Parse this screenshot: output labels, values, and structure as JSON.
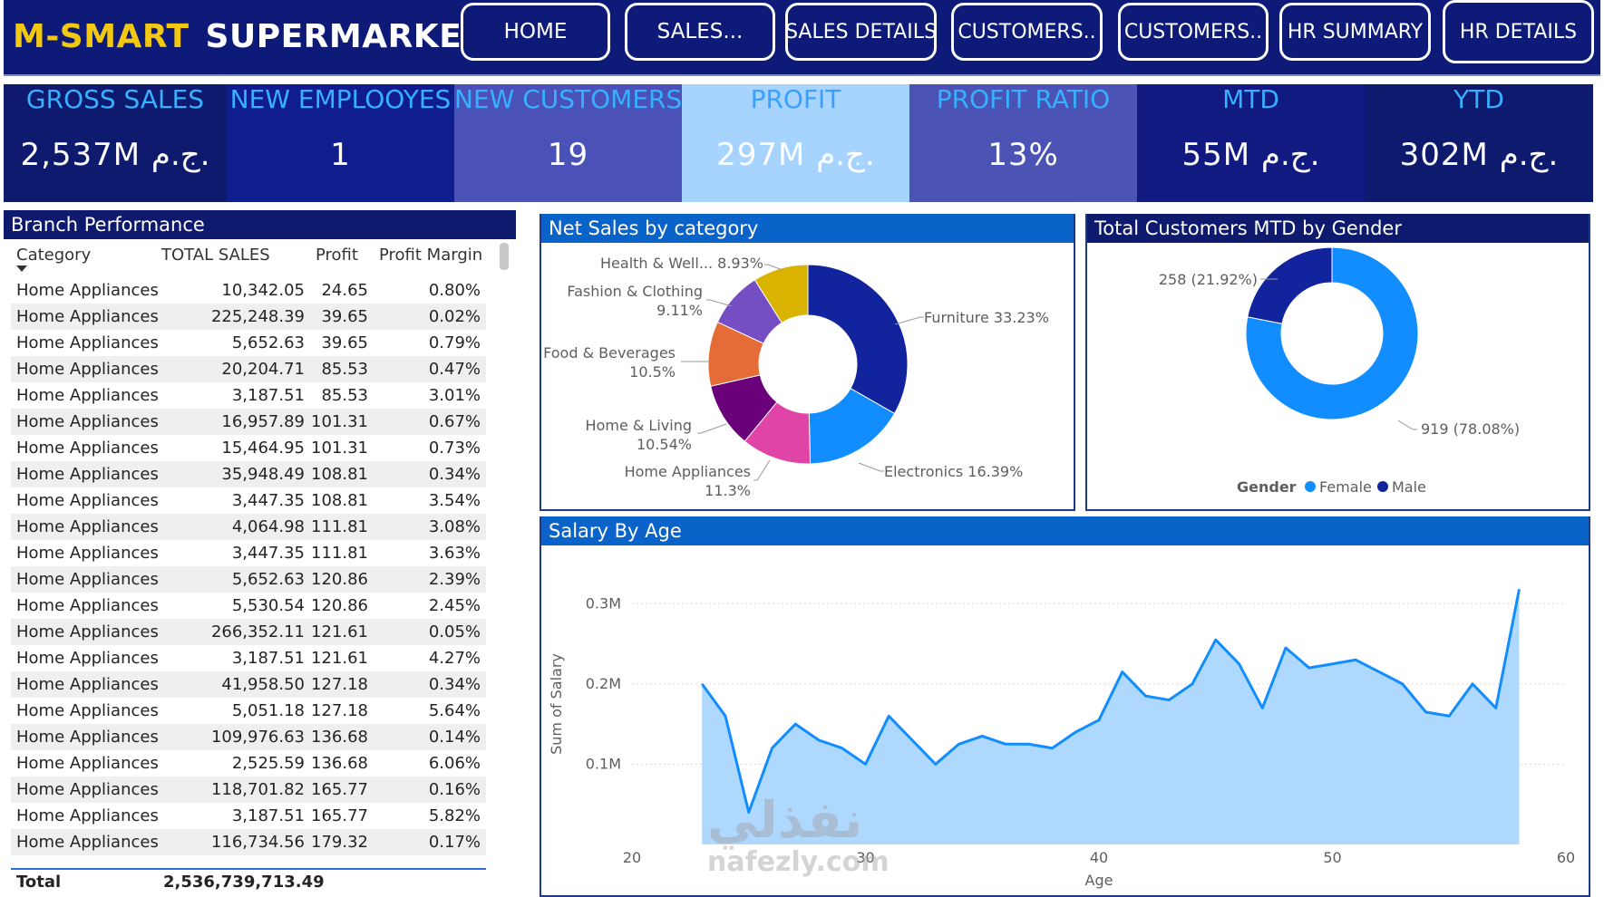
{
  "header": {
    "logo_part1": "M-SMART",
    "logo_part2": "SUPERMARKET",
    "nav": [
      "HOME",
      "SALES...",
      "SALES DETAILS",
      "CUSTOMERS..",
      "CUSTOMERS..",
      "HR SUMMARY",
      "HR DETAILS"
    ]
  },
  "kpis": [
    {
      "label": "GROSS SALES",
      "value": "2,537M ج.م.",
      "label_color": "#36b0ff",
      "bg": "#0e1a6e"
    },
    {
      "label": "NEW EMPLOOYES",
      "value": "1",
      "label_color": "#36b0ff",
      "bg": "#0f1e8c"
    },
    {
      "label": "NEW CUSTOMERS",
      "value": "19",
      "label_color": "#36b0ff",
      "bg": "#4a52b8"
    },
    {
      "label": "PROFIT",
      "value": "297M ج.م.",
      "label_color": "#3aa0ff",
      "bg": "#a6d4ff"
    },
    {
      "label": "PROFIT RATIO",
      "value": "13%",
      "label_color": "#36b0ff",
      "bg": "#4b54b5"
    },
    {
      "label": "MTD",
      "value": "55M ج.م.",
      "label_color": "#36b0ff",
      "bg": "#101a80"
    },
    {
      "label": "YTD",
      "value": "302M ج.م.",
      "label_color": "#36b0ff",
      "bg": "#0e1a6e"
    }
  ],
  "branch": {
    "title": "Branch Performance",
    "columns": [
      "Category",
      "TOTAL SALES",
      "Profit",
      "Profit Margin"
    ],
    "rows": [
      [
        "Home Appliances",
        "10,342.05",
        "24.65",
        "0.80%"
      ],
      [
        "Home Appliances",
        "225,248.39",
        "39.65",
        "0.02%"
      ],
      [
        "Home Appliances",
        "5,652.63",
        "39.65",
        "0.79%"
      ],
      [
        "Home Appliances",
        "20,204.71",
        "85.53",
        "0.47%"
      ],
      [
        "Home Appliances",
        "3,187.51",
        "85.53",
        "3.01%"
      ],
      [
        "Home Appliances",
        "16,957.89",
        "101.31",
        "0.67%"
      ],
      [
        "Home Appliances",
        "15,464.95",
        "101.31",
        "0.73%"
      ],
      [
        "Home Appliances",
        "35,948.49",
        "108.81",
        "0.34%"
      ],
      [
        "Home Appliances",
        "3,447.35",
        "108.81",
        "3.54%"
      ],
      [
        "Home Appliances",
        "4,064.98",
        "111.81",
        "3.08%"
      ],
      [
        "Home Appliances",
        "3,447.35",
        "111.81",
        "3.63%"
      ],
      [
        "Home Appliances",
        "5,652.63",
        "120.86",
        "2.39%"
      ],
      [
        "Home Appliances",
        "5,530.54",
        "120.86",
        "2.45%"
      ],
      [
        "Home Appliances",
        "266,352.11",
        "121.61",
        "0.05%"
      ],
      [
        "Home Appliances",
        "3,187.51",
        "121.61",
        "4.27%"
      ],
      [
        "Home Appliances",
        "41,958.50",
        "127.18",
        "0.34%"
      ],
      [
        "Home Appliances",
        "5,051.18",
        "127.18",
        "5.64%"
      ],
      [
        "Home Appliances",
        "109,976.63",
        "136.68",
        "0.14%"
      ],
      [
        "Home Appliances",
        "2,525.59",
        "136.68",
        "6.06%"
      ],
      [
        "Home Appliances",
        "118,701.82",
        "165.77",
        "0.16%"
      ],
      [
        "Home Appliances",
        "3,187.51",
        "165.77",
        "5.82%"
      ],
      [
        "Home Appliances",
        "116,734.56",
        "179.32",
        "0.17%"
      ]
    ],
    "total_label": "Total",
    "total_value": "2,536,739,713.49"
  },
  "charts": {
    "netsales_title": "Net Sales by category",
    "gender_title": "Total Customers MTD by Gender",
    "salary_title": "Salary By Age"
  },
  "chart_data": [
    {
      "type": "pie",
      "title": "Net Sales by category",
      "categories": [
        "Furniture",
        "Electronics",
        "Home Appliances",
        "Home & Living",
        "Food & Beverages",
        "Fashion & Clothing",
        "Health & Well..."
      ],
      "values": [
        33.23,
        16.39,
        11.3,
        10.54,
        10.5,
        9.11,
        8.93
      ],
      "labels": [
        "Furniture 33.23%",
        "Electronics 16.39%",
        "Home Appliances 11.3%",
        "Home & Living 10.54%",
        "Food & Beverages 10.5%",
        "Fashion & Clothing 9.11%",
        "Health & Well... 8.93%"
      ],
      "colors": [
        "#12239e",
        "#118dff",
        "#e044a7",
        "#6b007b",
        "#e66c37",
        "#744ec2",
        "#d9b300"
      ]
    },
    {
      "type": "pie",
      "title": "Total Customers MTD by Gender",
      "categories": [
        "Female",
        "Male"
      ],
      "values": [
        919,
        258
      ],
      "labels": [
        "919 (78.08%)",
        "258 (21.92%)"
      ],
      "colors": [
        "#118dff",
        "#12239e"
      ],
      "legend_title": "Gender",
      "legend": [
        "Female",
        "Male"
      ]
    },
    {
      "type": "area",
      "title": "Salary By Age",
      "xlabel": "Age",
      "ylabel": "Sum of Salary",
      "x": [
        23,
        24,
        25,
        26,
        27,
        28,
        29,
        30,
        31,
        32,
        33,
        34,
        35,
        36,
        37,
        38,
        39,
        40,
        41,
        42,
        43,
        44,
        45,
        46,
        47,
        48,
        49,
        50,
        51,
        52,
        53,
        54,
        55,
        56,
        57,
        58
      ],
      "y": [
        200000,
        160000,
        40000,
        120000,
        150000,
        130000,
        120000,
        100000,
        160000,
        130000,
        100000,
        125000,
        135000,
        125000,
        125000,
        120000,
        140000,
        155000,
        215000,
        185000,
        180000,
        200000,
        255000,
        225000,
        170000,
        245000,
        220000,
        225000,
        230000,
        215000,
        200000,
        165000,
        160000,
        200000,
        170000,
        318000
      ],
      "xlim": [
        20,
        60
      ],
      "ylim": [
        0,
        0.35
      ],
      "xticks": [
        "20",
        "30",
        "40",
        "50",
        "60"
      ],
      "yticks": [
        "0.1M",
        "0.2M",
        "0.3M"
      ],
      "color": "#118dff"
    }
  ],
  "watermark": {
    "arabic": "نفذلي",
    "latin": "nafezly.com"
  }
}
